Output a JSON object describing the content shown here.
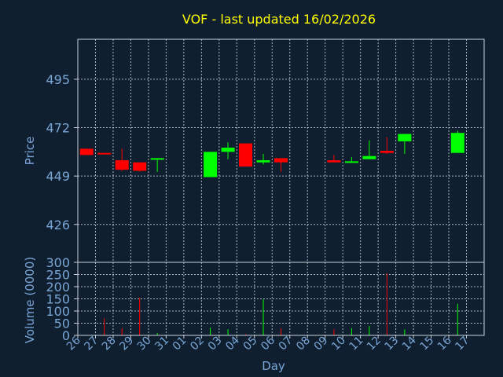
{
  "chart_data": [
    {
      "type": "candlestick",
      "title": "VOF - last updated 16/02/2026",
      "ylabel": "Price",
      "yticks": [
        426,
        449,
        472,
        495
      ],
      "ylim": [
        408,
        514
      ],
      "grid": true,
      "colors": {
        "up": "#00ff00",
        "down": "#ff0000"
      },
      "candles": [
        {
          "x": "26",
          "open": 462.0,
          "high": 462.0,
          "low": 459.0,
          "close": 459.0
        },
        {
          "x": "27",
          "open": 460.0,
          "high": 460.0,
          "low": 459.5,
          "close": 459.5
        },
        {
          "x": "28",
          "open": 456.5,
          "high": 462.0,
          "low": 451.5,
          "close": 452.0
        },
        {
          "x": "29",
          "open": 455.5,
          "high": 455.5,
          "low": 451.0,
          "close": 451.5
        },
        {
          "x": "30",
          "open": 457.0,
          "high": 457.5,
          "low": 451.0,
          "close": 457.5
        },
        {
          "x": "02",
          "open": 448.5,
          "high": 460.5,
          "low": 448.5,
          "close": 460.5
        },
        {
          "x": "03",
          "open": 460.5,
          "high": 465.0,
          "low": 457.0,
          "close": 462.5
        },
        {
          "x": "04",
          "open": 464.5,
          "high": 464.5,
          "low": 453.5,
          "close": 453.5
        },
        {
          "x": "05",
          "open": 455.5,
          "high": 459.5,
          "low": 454.5,
          "close": 456.5
        },
        {
          "x": "06",
          "open": 457.5,
          "high": 457.5,
          "low": 451.0,
          "close": 455.5
        },
        {
          "x": "09",
          "open": 456.5,
          "high": 459.0,
          "low": 455.5,
          "close": 455.5
        },
        {
          "x": "10",
          "open": 455.5,
          "high": 458.0,
          "low": 455.5,
          "close": 456.0
        },
        {
          "x": "11",
          "open": 457.0,
          "high": 466.0,
          "low": 457.0,
          "close": 458.5
        },
        {
          "x": "12",
          "open": 461.0,
          "high": 467.5,
          "low": 459.5,
          "close": 460.0
        },
        {
          "x": "13",
          "open": 465.5,
          "high": 469.0,
          "low": 459.5,
          "close": 469.0
        },
        {
          "x": "16",
          "open": 460.0,
          "high": 470.5,
          "low": 460.0,
          "close": 469.5
        }
      ]
    },
    {
      "type": "bar",
      "ylabel": "Volume (0000)",
      "xlabel": "Day",
      "yticks": [
        0,
        50,
        100,
        150,
        200,
        250,
        300
      ],
      "ylim": [
        0,
        300
      ],
      "grid": true,
      "categories": [
        "26",
        "27",
        "28",
        "29",
        "30",
        "31",
        "01",
        "02",
        "03",
        "04",
        "05",
        "06",
        "07",
        "08",
        "09",
        "10",
        "11",
        "12",
        "13",
        "14",
        "15",
        "16",
        "17"
      ],
      "values": [
        0,
        70,
        30,
        155,
        10,
        0,
        0,
        32,
        25,
        5,
        148,
        30,
        0,
        0,
        25,
        30,
        38,
        255,
        25,
        0,
        0,
        130,
        0
      ],
      "bar_colors": [
        "",
        "#ff0000",
        "#ff0000",
        "#ff0000",
        "#00ff00",
        "",
        "",
        "#00ff00",
        "#00ff00",
        "#ff0000",
        "#00ff00",
        "#ff0000",
        "",
        "",
        "#ff0000",
        "#00ff00",
        "#00ff00",
        "#ff0000",
        "#00ff00",
        "",
        "",
        "#00ff00",
        ""
      ]
    }
  ]
}
